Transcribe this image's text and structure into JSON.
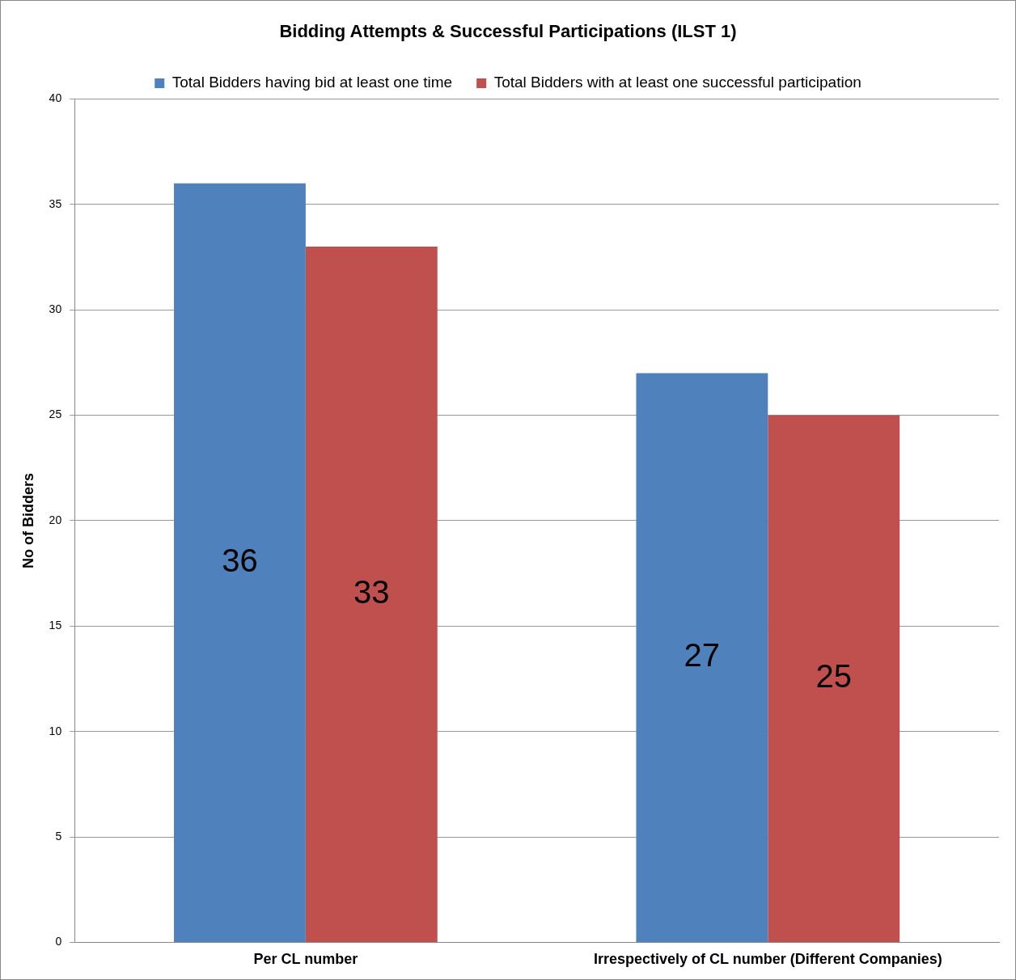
{
  "chart_data": {
    "type": "bar",
    "title": "Bidding Attempts & Successful Participations (ILST 1)",
    "ylabel": "No of Bidders",
    "categories": [
      "Per CL number",
      "Irrespectively of CL number (Different Companies)"
    ],
    "series": [
      {
        "name": "Total Bidders having bid at least one time",
        "color": "#4f81bd",
        "values": [
          36,
          27
        ]
      },
      {
        "name": "Total Bidders with at least one successful participation",
        "color": "#c0504d",
        "values": [
          33,
          25
        ]
      }
    ],
    "ylim": [
      0,
      40
    ],
    "yticks": [
      0,
      5,
      10,
      15,
      20,
      25,
      30,
      35,
      40
    ],
    "grid": "y",
    "legend": "top",
    "data_labels": true
  }
}
